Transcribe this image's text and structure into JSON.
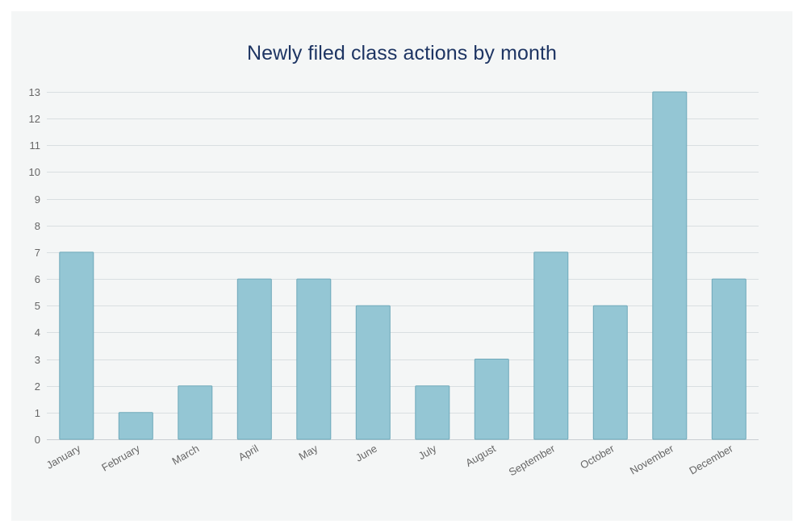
{
  "chart_data": {
    "type": "bar",
    "title": "Newly filed class actions by month",
    "categories": [
      "January",
      "February",
      "March",
      "April",
      "May",
      "June",
      "July",
      "August",
      "September",
      "October",
      "November",
      "December"
    ],
    "series": [
      {
        "values": [
          7,
          1,
          2,
          6,
          6,
          5,
          2,
          3,
          7,
          5,
          13,
          6
        ]
      }
    ],
    "xlabel": "",
    "ylabel": "",
    "ylim": [
      0,
      13
    ],
    "y_ticks": [
      0,
      1,
      2,
      3,
      4,
      5,
      6,
      7,
      8,
      9,
      10,
      11,
      12,
      13
    ],
    "grid": true,
    "legend": "none",
    "bar_color": "#94c6d4",
    "bar_edge_color": "#6ea9ba",
    "title_color": "#1e3563"
  }
}
